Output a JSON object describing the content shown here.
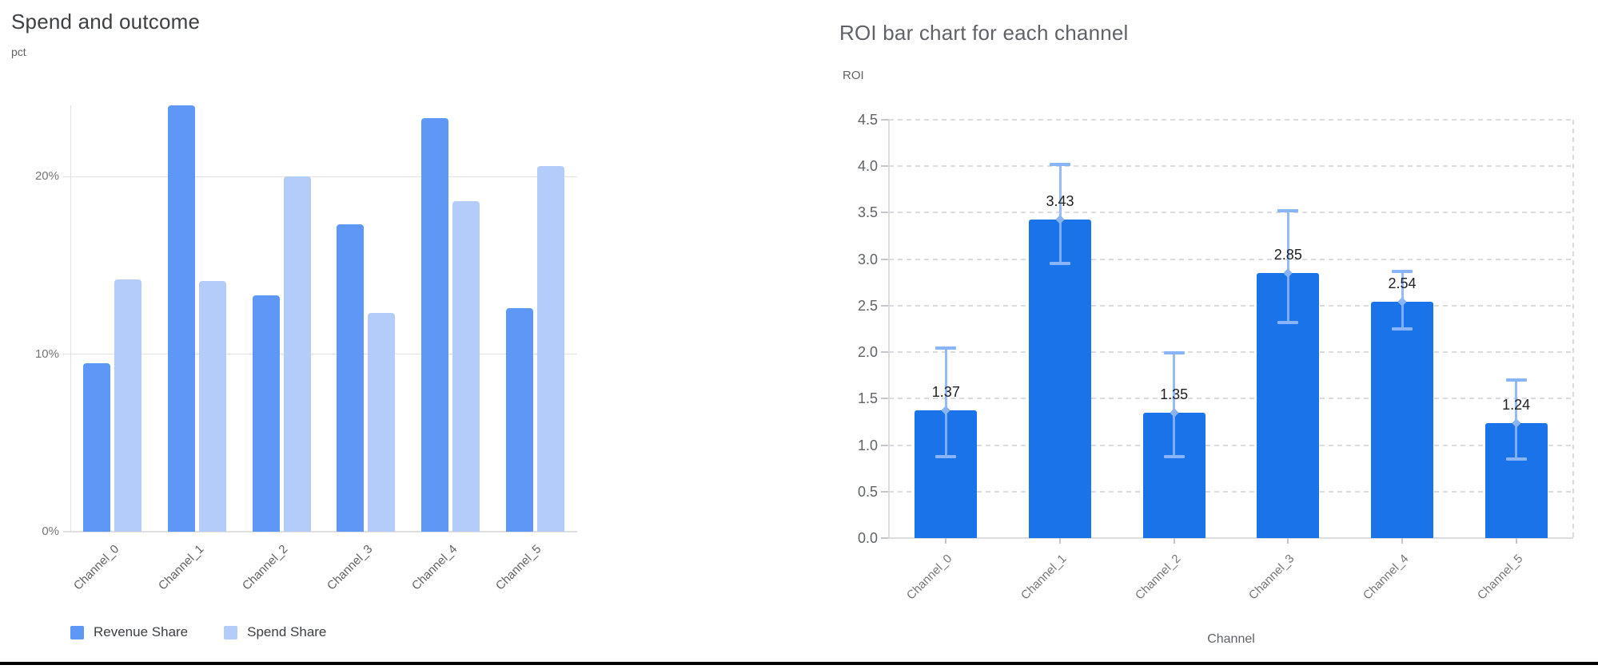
{
  "chart_data": [
    {
      "type": "bar",
      "title": "Spend and outcome",
      "ylabel": "pct",
      "xlabel": "",
      "categories": [
        "Channel_0",
        "Channel_1",
        "Channel_2",
        "Channel_3",
        "Channel_4",
        "Channel_5"
      ],
      "series": [
        {
          "name": "Revenue Share",
          "color": "#5e97f6",
          "values": [
            9.5,
            24.0,
            13.3,
            17.3,
            23.3,
            12.6
          ]
        },
        {
          "name": "Spend Share",
          "color": "#b3ccf9",
          "values": [
            14.2,
            14.1,
            20.0,
            12.3,
            18.6,
            20.6
          ]
        }
      ],
      "y_ticks": [
        {
          "value": 0,
          "label": "0%"
        },
        {
          "value": 10,
          "label": "10%"
        },
        {
          "value": 20,
          "label": "20%"
        }
      ],
      "ylim": [
        0,
        24
      ],
      "grid": "solid",
      "legend_position": "bottom"
    },
    {
      "type": "bar",
      "title": "ROI bar chart for each channel",
      "ylabel": "ROI",
      "xlabel": "Channel",
      "categories": [
        "Channel_0",
        "Channel_1",
        "Channel_2",
        "Channel_3",
        "Channel_4",
        "Channel_5"
      ],
      "series": [
        {
          "name": "ROI",
          "color": "#1a73e8",
          "values": [
            1.37,
            3.43,
            1.35,
            2.85,
            2.54,
            1.24
          ]
        }
      ],
      "data_labels": [
        "1.37",
        "3.43",
        "1.35",
        "2.85",
        "2.54",
        "1.24"
      ],
      "error_bars": {
        "color": "#8ab4f8",
        "low": [
          0.88,
          2.95,
          0.88,
          2.32,
          2.25,
          0.85
        ],
        "high": [
          2.04,
          4.02,
          1.99,
          3.52,
          2.87,
          1.7
        ]
      },
      "y_ticks": [
        {
          "value": 0,
          "label": "0.0"
        },
        {
          "value": 0.5,
          "label": "0.5"
        },
        {
          "value": 1,
          "label": "1.0"
        },
        {
          "value": 1.5,
          "label": "1.5"
        },
        {
          "value": 2,
          "label": "2.0"
        },
        {
          "value": 2.5,
          "label": "2.5"
        },
        {
          "value": 3,
          "label": "3.0"
        },
        {
          "value": 3.5,
          "label": "3.5"
        },
        {
          "value": 4,
          "label": "4.0"
        },
        {
          "value": 4.5,
          "label": "4.5"
        }
      ],
      "ylim": [
        0,
        4.5
      ],
      "grid": "dashed",
      "legend_position": "none"
    }
  ]
}
